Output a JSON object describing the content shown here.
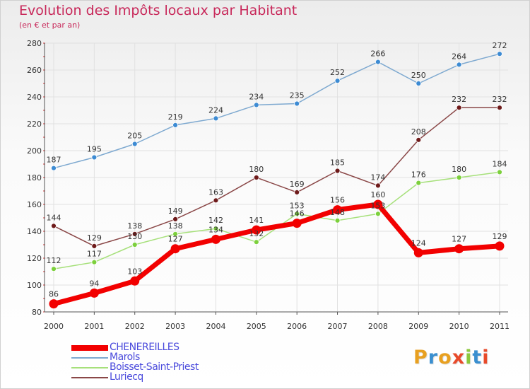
{
  "title": "Evolution des Impôts locaux par Habitant",
  "subtitle": "(en € et par an)",
  "logo_text": "Proxiti",
  "logo_colors": [
    "#e8a020",
    "#3a8fd0",
    "#e8a020",
    "#e84a2a",
    "#8cc83c",
    "#3a8fd0",
    "#e84a2a"
  ],
  "chart_data": {
    "type": "line",
    "title": "Evolution des Impôts locaux par Habitant",
    "subtitle": "(en € et par an)",
    "xlabel": "",
    "ylabel": "",
    "x": [
      "2000",
      "2001",
      "2002",
      "2003",
      "2004",
      "2005",
      "2006",
      "2007",
      "2008",
      "2009",
      "2010",
      "2011"
    ],
    "ylim": [
      80,
      280
    ],
    "yticks": [
      "80",
      "100",
      "120",
      "140",
      "160",
      "180",
      "200",
      "220",
      "240",
      "260",
      "280"
    ],
    "grid": true,
    "legend_position": "bottom-left",
    "series": [
      {
        "name": "CHENEREILLES",
        "color": "#f20000",
        "marker_color": "#f20000",
        "emphasis": true,
        "values": [
          86,
          94,
          103,
          127,
          134,
          141,
          146,
          156,
          160,
          124,
          127,
          129
        ],
        "labels": [
          "86",
          "94",
          "103",
          "127",
          "134",
          "141",
          "146",
          "156",
          "160",
          "124",
          "127",
          "129"
        ]
      },
      {
        "name": "Marols",
        "color": "#7ea9d0",
        "marker_color": "#3d8bd3",
        "emphasis": false,
        "values": [
          187,
          195,
          205,
          219,
          224,
          234,
          235,
          252,
          266,
          250,
          264,
          272
        ],
        "labels": [
          "187",
          "195",
          "205",
          "219",
          "224",
          "234",
          "235",
          "252",
          "266",
          "250",
          "264",
          "272"
        ]
      },
      {
        "name": "Boisset-Saint-Priest",
        "color": "#a6e07a",
        "marker_color": "#7cd03c",
        "emphasis": false,
        "values": [
          112,
          117,
          130,
          138,
          142,
          132,
          153,
          148,
          153,
          176,
          180,
          184
        ],
        "labels": [
          "112",
          "117",
          "130",
          "138",
          "142",
          "132",
          "153",
          "148",
          "153",
          "176",
          "180",
          "184"
        ]
      },
      {
        "name": "Luriecq",
        "color": "#8a4747",
        "marker_color": "#6e1a1a",
        "emphasis": false,
        "values": [
          144,
          129,
          138,
          149,
          163,
          180,
          169,
          185,
          174,
          208,
          232,
          232
        ],
        "labels": [
          "144",
          "129",
          "138",
          "149",
          "163",
          "180",
          "169",
          "185",
          "174",
          "208",
          "232",
          "232"
        ]
      }
    ]
  }
}
